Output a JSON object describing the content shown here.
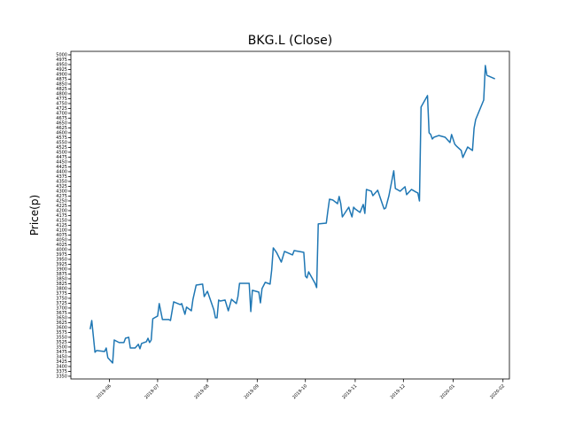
{
  "chart_data": {
    "type": "line",
    "title": "BKG.L (Close)",
    "y_label": "Price(p)",
    "series": [
      {
        "name": "Close",
        "color": "#1f77b4",
        "x": [
          "2019-05-20",
          "2019-05-21",
          "2019-05-23",
          "2019-05-24",
          "2019-05-29",
          "2019-05-30",
          "2019-05-31",
          "2019-06-03",
          "2019-06-04",
          "2019-06-07",
          "2019-06-10",
          "2019-06-11",
          "2019-06-13",
          "2019-06-14",
          "2019-06-17",
          "2019-06-19",
          "2019-06-20",
          "2019-06-21",
          "2019-06-24",
          "2019-06-25",
          "2019-06-26",
          "2019-06-27",
          "2019-06-28",
          "2019-07-01",
          "2019-07-02",
          "2019-07-04",
          "2019-07-08",
          "2019-07-09",
          "2019-07-11",
          "2019-07-15",
          "2019-07-16",
          "2019-07-18",
          "2019-07-19",
          "2019-07-22",
          "2019-07-23",
          "2019-07-25",
          "2019-07-29",
          "2019-07-30",
          "2019-08-01",
          "2019-08-05",
          "2019-08-06",
          "2019-08-07",
          "2019-08-08",
          "2019-08-09",
          "2019-08-12",
          "2019-08-14",
          "2019-08-16",
          "2019-08-19",
          "2019-08-20",
          "2019-08-21",
          "2019-08-27",
          "2019-08-28",
          "2019-08-29",
          "2019-09-02",
          "2019-09-03",
          "2019-09-04",
          "2019-09-06",
          "2019-09-09",
          "2019-09-10",
          "2019-09-11",
          "2019-09-13",
          "2019-09-16",
          "2019-09-18",
          "2019-09-23",
          "2019-09-24",
          "2019-09-30",
          "2019-10-01",
          "2019-10-02",
          "2019-10-03",
          "2019-10-07",
          "2019-10-08",
          "2019-10-09",
          "2019-10-14",
          "2019-10-15",
          "2019-10-16",
          "2019-10-18",
          "2019-10-21",
          "2019-10-22",
          "2019-10-23",
          "2019-10-24",
          "2019-10-28",
          "2019-10-29",
          "2019-10-30",
          "2019-10-31",
          "2019-11-01",
          "2019-11-04",
          "2019-11-06",
          "2019-11-07",
          "2019-11-08",
          "2019-11-11",
          "2019-11-12",
          "2019-11-15",
          "2019-11-18",
          "2019-11-19",
          "2019-11-20",
          "2019-11-22",
          "2019-11-25",
          "2019-11-26",
          "2019-11-29",
          "2019-12-02",
          "2019-12-03",
          "2019-12-06",
          "2019-12-09",
          "2019-12-10",
          "2019-12-11",
          "2019-12-12",
          "2019-12-16",
          "2019-12-17",
          "2019-12-18",
          "2019-12-19",
          "2019-12-20",
          "2019-12-23",
          "2019-12-27",
          "2019-12-30",
          "2019-12-31",
          "2020-01-02",
          "2020-01-03",
          "2020-01-06",
          "2020-01-07",
          "2020-01-08",
          "2020-01-10",
          "2020-01-13",
          "2020-01-14",
          "2020-01-15",
          "2020-01-20",
          "2020-01-21",
          "2020-01-22",
          "2020-01-27"
        ],
        "values": [
          3591,
          3636,
          3473,
          3482,
          3477,
          3495,
          3445,
          3418,
          3536,
          3523,
          3523,
          3545,
          3550,
          3495,
          3495,
          3514,
          3491,
          3518,
          3527,
          3545,
          3523,
          3536,
          3645,
          3659,
          3723,
          3641,
          3641,
          3636,
          3732,
          3718,
          3723,
          3668,
          3705,
          3686,
          3745,
          3818,
          3823,
          3759,
          3786,
          3691,
          3650,
          3650,
          3741,
          3736,
          3741,
          3686,
          3745,
          3723,
          3759,
          3827,
          3827,
          3682,
          3791,
          3782,
          3727,
          3800,
          3832,
          3823,
          3895,
          4009,
          3986,
          3936,
          3991,
          3973,
          3995,
          3986,
          3864,
          3855,
          3886,
          3827,
          3805,
          4132,
          4136,
          4200,
          4259,
          4255,
          4236,
          4273,
          4236,
          4168,
          4218,
          4191,
          4168,
          4218,
          4209,
          4191,
          4232,
          4186,
          4309,
          4300,
          4277,
          4305,
          4232,
          4209,
          4214,
          4277,
          4405,
          4314,
          4300,
          4323,
          4282,
          4309,
          4295,
          4291,
          4250,
          4732,
          4791,
          4600,
          4591,
          4568,
          4577,
          4586,
          4577,
          4550,
          4591,
          4541,
          4532,
          4509,
          4473,
          4491,
          4527,
          4509,
          4623,
          4668,
          4768,
          4945,
          4895,
          4877
        ]
      }
    ],
    "xlim": [
      "2019-05-08",
      "2020-02-05"
    ],
    "xticks": [
      {
        "value": "2019-06-01",
        "label": "2019-06"
      },
      {
        "value": "2019-07-01",
        "label": "2019-07"
      },
      {
        "value": "2019-08-01",
        "label": "2019-08"
      },
      {
        "value": "2019-09-01",
        "label": "2019-09"
      },
      {
        "value": "2019-10-01",
        "label": "2019-10"
      },
      {
        "value": "2019-11-01",
        "label": "2019-11"
      },
      {
        "value": "2019-12-01",
        "label": "2019-12"
      },
      {
        "value": "2020-01-01",
        "label": "2020-01"
      },
      {
        "value": "2020-02-01",
        "label": "2020-02"
      }
    ],
    "ylim": [
      3336,
      5018
    ],
    "yticks": [
      3350,
      3375,
      3400,
      3425,
      3450,
      3475,
      3500,
      3525,
      3550,
      3575,
      3600,
      3625,
      3650,
      3675,
      3700,
      3725,
      3750,
      3775,
      3800,
      3825,
      3850,
      3875,
      3900,
      3925,
      3950,
      3975,
      4000,
      4025,
      4050,
      4075,
      4100,
      4125,
      4150,
      4175,
      4200,
      4225,
      4250,
      4275,
      4300,
      4325,
      4350,
      4375,
      4400,
      4425,
      4450,
      4475,
      4500,
      4525,
      4550,
      4575,
      4600,
      4625,
      4650,
      4675,
      4700,
      4725,
      4750,
      4775,
      4800,
      4825,
      4850,
      4875,
      4900,
      4925,
      4950,
      4975,
      5000
    ]
  }
}
